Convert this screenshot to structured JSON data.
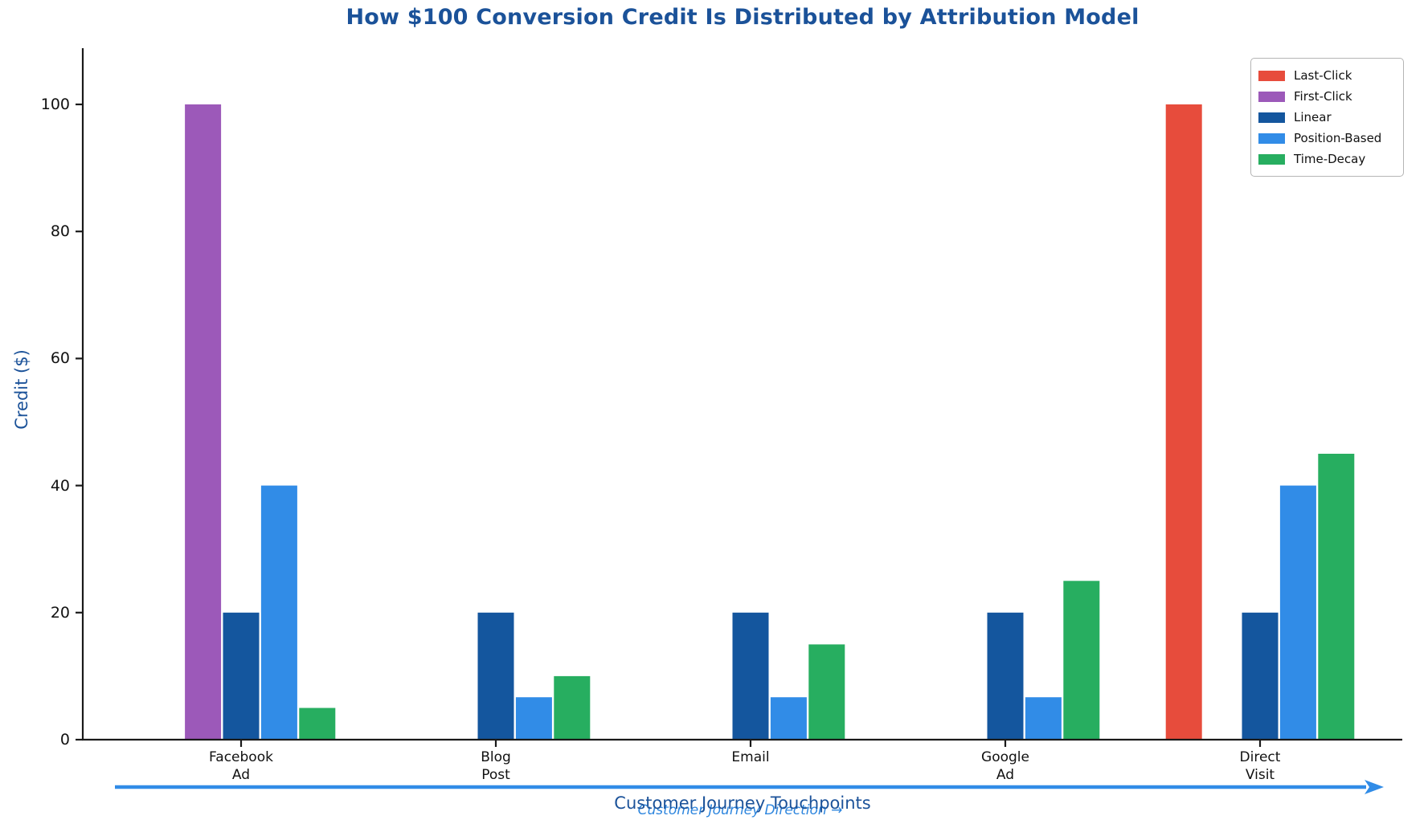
{
  "chart_data": {
    "type": "bar",
    "title": "How $100 Conversion Credit Is Distributed by Attribution Model",
    "ylabel": "Credit ($)",
    "xlabel": "Customer Journey Touchpoints",
    "annotation": "Customer Journey Direction →",
    "categories": [
      "Facebook\nAd",
      "Blog\nPost",
      "Email",
      "Google\nAd",
      "Direct\nVisit"
    ],
    "series": [
      {
        "name": "Last-Click",
        "color": "#E74C3C",
        "values": [
          0,
          0,
          0,
          0,
          100
        ]
      },
      {
        "name": "First-Click",
        "color": "#9C59B9",
        "values": [
          100,
          0,
          0,
          0,
          0
        ]
      },
      {
        "name": "Linear",
        "color": "#14569E",
        "values": [
          20,
          20,
          20,
          20,
          20
        ]
      },
      {
        "name": "Position-Based",
        "color": "#318CE7",
        "values": [
          40,
          6.67,
          6.67,
          6.67,
          40
        ]
      },
      {
        "name": "Time-Decay",
        "color": "#27AE60",
        "values": [
          5,
          10,
          15,
          25,
          45
        ]
      }
    ],
    "yticks": [
      0,
      20,
      40,
      60,
      80,
      100
    ],
    "ylim": [
      0,
      109
    ],
    "grid": false,
    "legend_position": "upper right",
    "colors": {
      "title_text": "#1B5299",
      "axis_spine": "#1a1a1a",
      "tick_text": "#111111",
      "arrow": "#318CE7",
      "annotation_text": "#2E86DE"
    }
  }
}
